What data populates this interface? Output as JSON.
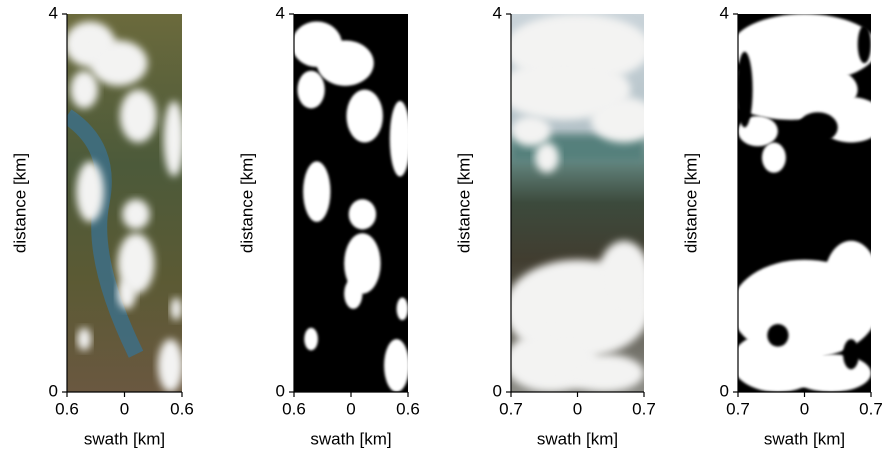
{
  "chart_data": [
    {
      "type": "image",
      "xlabel": "swath [km]",
      "ylabel": "distance [km]",
      "xlim": [
        -0.6,
        0.6
      ],
      "ylim": [
        0,
        4
      ],
      "xticks": [
        {
          "value": -0.6,
          "label": "0.6"
        },
        0,
        0.6
      ],
      "yticks": [
        0,
        4
      ]
    },
    {
      "type": "mask",
      "xlabel": "swath [km]",
      "ylabel": "distance [km]",
      "xlim": [
        -0.6,
        0.6
      ],
      "ylim": [
        0,
        4
      ],
      "xticks": [
        {
          "value": -0.6,
          "label": "0.6"
        },
        0,
        0.6
      ],
      "yticks": [
        0,
        4
      ]
    },
    {
      "type": "image",
      "xlabel": "swath [km]",
      "ylabel": "distance [km]",
      "xlim": [
        -0.7,
        0.7
      ],
      "ylim": [
        0,
        4
      ],
      "xticks": [
        {
          "value": -0.7,
          "label": "0.7"
        },
        0,
        0.7
      ],
      "yticks": [
        0,
        4
      ]
    },
    {
      "type": "mask",
      "xlabel": "swath [km]",
      "ylabel": "distance [km]",
      "xlim": [
        -0.7,
        0.7
      ],
      "ylim": [
        0,
        4
      ],
      "xticks": [
        {
          "value": -0.7,
          "label": "0.7"
        },
        0,
        0.7
      ],
      "yticks": [
        0,
        4
      ]
    }
  ]
}
